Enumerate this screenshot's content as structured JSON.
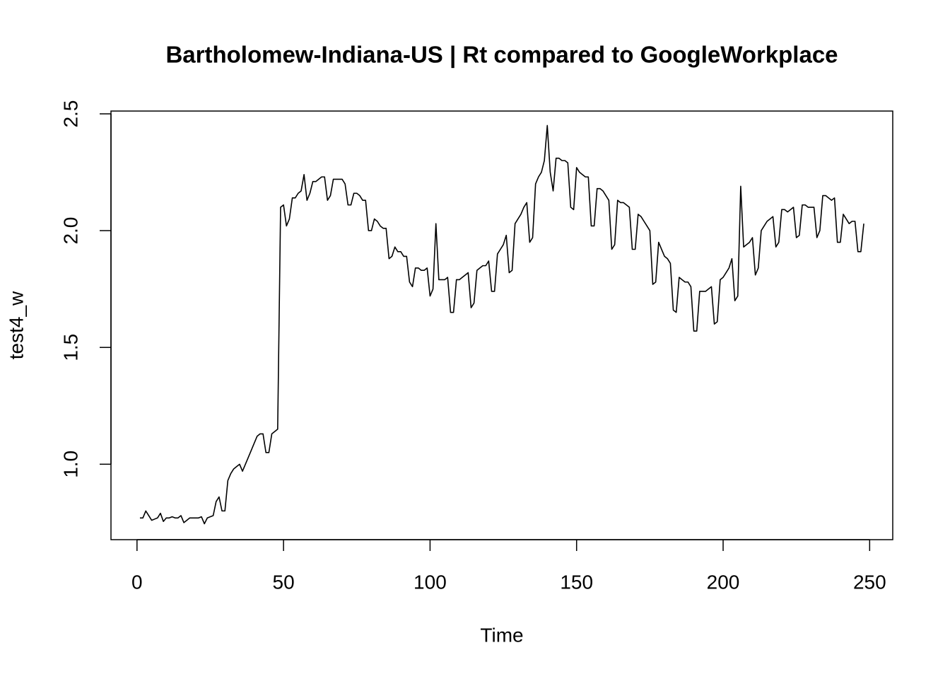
{
  "chart_data": {
    "type": "line",
    "title": "Bartholomew-Indiana-US | Rt compared to GoogleWorkplace",
    "xlabel": "Time",
    "ylabel": "test4_w",
    "color": "#000000",
    "xlim": [
      -8.88,
      257.88
    ],
    "ylim": [
      0.677,
      2.512
    ],
    "xticks": [
      0,
      50,
      100,
      150,
      200,
      250
    ],
    "yticks": [
      {
        "value": 1,
        "label": "1.0"
      },
      {
        "value": 1.5,
        "label": "1.5"
      },
      {
        "value": 2,
        "label": "2.0"
      },
      {
        "value": 2.5,
        "label": "2.5"
      }
    ],
    "x": [
      1,
      2,
      3,
      4,
      5,
      6,
      7,
      8,
      9,
      10,
      11,
      12,
      13,
      14,
      15,
      16,
      17,
      18,
      19,
      20,
      21,
      22,
      23,
      24,
      25,
      26,
      27,
      28,
      29,
      30,
      31,
      32,
      33,
      34,
      35,
      36,
      37,
      38,
      39,
      40,
      41,
      42,
      43,
      44,
      45,
      46,
      47,
      48,
      49,
      50,
      51,
      52,
      53,
      54,
      55,
      56,
      57,
      58,
      59,
      60,
      61,
      62,
      63,
      64,
      65,
      66,
      67,
      68,
      69,
      70,
      71,
      72,
      73,
      74,
      75,
      76,
      77,
      78,
      79,
      80,
      81,
      82,
      83,
      84,
      85,
      86,
      87,
      88,
      89,
      90,
      91,
      92,
      93,
      94,
      95,
      96,
      97,
      98,
      99,
      100,
      101,
      102,
      103,
      104,
      105,
      106,
      107,
      108,
      109,
      110,
      111,
      112,
      113,
      114,
      115,
      116,
      117,
      118,
      119,
      120,
      121,
      122,
      123,
      124,
      125,
      126,
      127,
      128,
      129,
      130,
      131,
      132,
      133,
      134,
      135,
      136,
      137,
      138,
      139,
      140,
      141,
      142,
      143,
      144,
      145,
      146,
      147,
      148,
      149,
      150,
      151,
      152,
      153,
      154,
      155,
      156,
      157,
      158,
      159,
      160,
      161,
      162,
      163,
      164,
      165,
      166,
      167,
      168,
      169,
      170,
      171,
      172,
      173,
      174,
      175,
      176,
      177,
      178,
      179,
      180,
      181,
      182,
      183,
      184,
      185,
      186,
      187,
      188,
      189,
      190,
      191,
      192,
      193,
      194,
      195,
      196,
      197,
      198,
      199,
      200,
      201,
      202,
      203,
      204,
      205,
      206,
      207,
      208,
      209,
      210,
      211,
      212,
      213,
      214,
      215,
      216,
      217,
      218,
      219,
      220,
      221,
      222,
      223,
      224,
      225,
      226,
      227,
      228,
      229,
      230,
      231,
      232,
      233,
      234,
      235,
      236,
      237,
      238,
      239,
      240,
      241,
      242,
      243,
      244,
      245,
      246,
      247,
      248
    ],
    "values": [
      0.77,
      0.77,
      0.8,
      0.78,
      0.76,
      0.765,
      0.77,
      0.79,
      0.755,
      0.77,
      0.77,
      0.775,
      0.77,
      0.77,
      0.78,
      0.75,
      0.76,
      0.77,
      0.77,
      0.77,
      0.77,
      0.775,
      0.745,
      0.77,
      0.775,
      0.78,
      0.84,
      0.86,
      0.8,
      0.8,
      0.93,
      0.96,
      0.98,
      0.99,
      1.0,
      0.97,
      1.0,
      1.03,
      1.06,
      1.09,
      1.12,
      1.13,
      1.13,
      1.05,
      1.05,
      1.13,
      1.14,
      1.15,
      2.1,
      2.11,
      2.02,
      2.05,
      2.14,
      2.14,
      2.16,
      2.17,
      2.24,
      2.13,
      2.16,
      2.21,
      2.21,
      2.22,
      2.23,
      2.23,
      2.13,
      2.15,
      2.22,
      2.22,
      2.22,
      2.22,
      2.2,
      2.11,
      2.11,
      2.16,
      2.16,
      2.15,
      2.13,
      2.13,
      2.0,
      2.0,
      2.05,
      2.04,
      2.02,
      2.01,
      2.01,
      1.88,
      1.89,
      1.93,
      1.91,
      1.91,
      1.89,
      1.89,
      1.78,
      1.76,
      1.84,
      1.84,
      1.83,
      1.83,
      1.84,
      1.72,
      1.75,
      2.03,
      1.79,
      1.79,
      1.79,
      1.8,
      1.65,
      1.65,
      1.79,
      1.79,
      1.8,
      1.81,
      1.82,
      1.67,
      1.69,
      1.83,
      1.84,
      1.85,
      1.85,
      1.87,
      1.74,
      1.74,
      1.9,
      1.92,
      1.94,
      1.98,
      1.82,
      1.83,
      2.03,
      2.05,
      2.07,
      2.1,
      2.12,
      1.95,
      1.97,
      2.2,
      2.23,
      2.25,
      2.3,
      2.45,
      2.25,
      2.17,
      2.31,
      2.31,
      2.3,
      2.3,
      2.29,
      2.1,
      2.09,
      2.27,
      2.25,
      2.24,
      2.23,
      2.23,
      2.02,
      2.02,
      2.18,
      2.18,
      2.17,
      2.15,
      2.13,
      1.92,
      1.94,
      2.13,
      2.12,
      2.12,
      2.11,
      2.1,
      1.92,
      1.92,
      2.07,
      2.06,
      2.04,
      2.02,
      2.0,
      1.77,
      1.78,
      1.95,
      1.92,
      1.89,
      1.88,
      1.86,
      1.66,
      1.65,
      1.8,
      1.79,
      1.78,
      1.78,
      1.76,
      1.57,
      1.57,
      1.74,
      1.74,
      1.74,
      1.75,
      1.76,
      1.6,
      1.61,
      1.79,
      1.8,
      1.82,
      1.84,
      1.88,
      1.7,
      1.72,
      2.19,
      1.93,
      1.94,
      1.95,
      1.97,
      1.81,
      1.84,
      2.0,
      2.02,
      2.04,
      2.05,
      2.06,
      1.93,
      1.95,
      2.09,
      2.09,
      2.08,
      2.09,
      2.1,
      1.97,
      1.98,
      2.11,
      2.11,
      2.1,
      2.1,
      2.1,
      1.97,
      2.0,
      2.15,
      2.15,
      2.14,
      2.13,
      2.14,
      1.95,
      1.95,
      2.07,
      2.05,
      2.03,
      2.04,
      2.04,
      1.91,
      1.91,
      2.03
    ]
  }
}
